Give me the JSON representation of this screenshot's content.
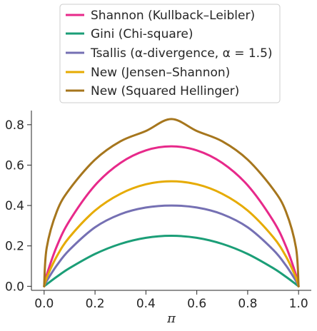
{
  "chart_data": {
    "type": "line",
    "title": "",
    "xlabel": "π",
    "ylabel": "",
    "xlim": [
      -0.05,
      1.05
    ],
    "ylim": [
      -0.02,
      0.87
    ],
    "xticks": [
      0.0,
      0.2,
      0.4,
      0.6,
      0.8,
      1.0
    ],
    "xtick_labels": [
      "0.0",
      "0.2",
      "0.4",
      "0.6",
      "0.8",
      "1.0"
    ],
    "yticks": [
      0.0,
      0.2,
      0.4,
      0.6,
      0.8
    ],
    "ytick_labels": [
      "0.0",
      "0.2",
      "0.4",
      "0.6",
      "0.8"
    ],
    "grid": false,
    "legend_position": "top-center, above plot",
    "x": [
      0.0,
      0.01,
      0.05,
      0.1,
      0.2,
      0.3,
      0.4,
      0.5,
      0.6,
      0.7,
      0.8,
      0.9,
      0.95,
      0.99,
      1.0
    ],
    "series": [
      {
        "name": "Shannon (Kullback–Leibler)",
        "color": "#e7298a",
        "values": [
          0.0,
          0.056,
          0.199,
          0.325,
          0.5,
          0.611,
          0.673,
          0.693,
          0.673,
          0.611,
          0.5,
          0.325,
          0.199,
          0.056,
          0.0
        ]
      },
      {
        "name": "Gini (Chi-square)",
        "color": "#1b9e77",
        "values": [
          0.0,
          0.0099,
          0.0475,
          0.09,
          0.16,
          0.21,
          0.24,
          0.25,
          0.24,
          0.21,
          0.16,
          0.09,
          0.0475,
          0.0099,
          0.0
        ]
      },
      {
        "name": "Tsallis (α-divergence, α = 1.5)",
        "color": "#7570b3",
        "values": [
          0.0,
          0.026,
          0.104,
          0.181,
          0.292,
          0.357,
          0.39,
          0.4,
          0.39,
          0.357,
          0.292,
          0.181,
          0.104,
          0.026,
          0.0
        ]
      },
      {
        "name": "New (Jensen–Shannon)",
        "color": "#e6ab02",
        "values": [
          0.0,
          0.042,
          0.149,
          0.244,
          0.375,
          0.458,
          0.505,
          0.52,
          0.505,
          0.458,
          0.375,
          0.244,
          0.149,
          0.042,
          0.0
        ]
      },
      {
        "name": "New (Squared Hellinger)",
        "color": "#a6761d",
        "values": [
          0.0,
          0.19,
          0.371,
          0.481,
          0.627,
          0.718,
          0.769,
          0.828,
          0.769,
          0.718,
          0.627,
          0.481,
          0.371,
          0.19,
          0.0
        ]
      }
    ]
  }
}
